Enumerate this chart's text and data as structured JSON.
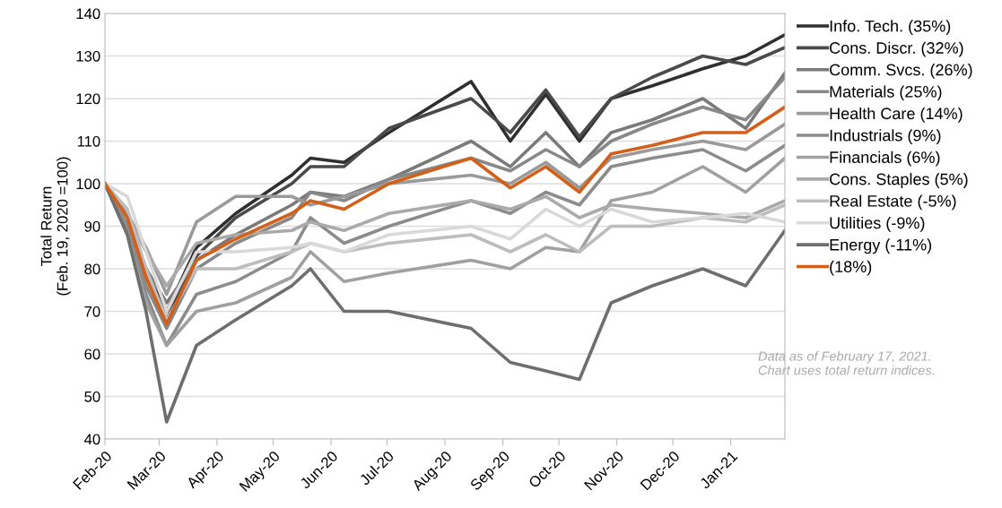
{
  "chart_data": {
    "type": "line",
    "ylabel": "Total Return\n(Feb. 19, 2020 =100)",
    "x": [
      "2020-02-19",
      "2020-03-02",
      "2020-03-12",
      "2020-03-23",
      "2020-04-08",
      "2020-04-29",
      "2020-05-29",
      "2020-06-08",
      "2020-06-26",
      "2020-07-20",
      "2020-09-02",
      "2020-09-23",
      "2020-10-12",
      "2020-10-30",
      "2020-11-16",
      "2020-12-08",
      "2021-01-04",
      "2021-01-27",
      "2021-02-17"
    ],
    "series": [
      {
        "name": "Info. Tech. (35%)",
        "color": "#2f2f2f",
        "values": [
          100,
          90,
          80,
          70,
          85,
          93,
          102,
          106,
          105,
          112,
          124,
          110,
          121,
          110,
          120,
          123,
          127,
          130,
          135
        ]
      },
      {
        "name": "Cons. Discr. (32%)",
        "color": "#4a4a4a",
        "values": [
          100,
          90,
          78,
          68,
          83,
          92,
          100,
          104,
          104,
          113,
          120,
          112,
          122,
          111,
          120,
          125,
          130,
          128,
          132
        ]
      },
      {
        "name": "Comm. Svcs. (26%)",
        "color": "#7a7a7a",
        "values": [
          100,
          92,
          80,
          72,
          82,
          88,
          95,
          98,
          97,
          101,
          110,
          104,
          112,
          104,
          112,
          115,
          120,
          113,
          126
        ]
      },
      {
        "name": "Materials (25%)",
        "color": "#888888",
        "values": [
          100,
          90,
          76,
          66,
          80,
          86,
          92,
          98,
          96,
          101,
          106,
          103,
          108,
          104,
          110,
          114,
          118,
          115,
          125
        ]
      },
      {
        "name": "Health Care (14%)",
        "color": "#9a9a9a",
        "values": [
          100,
          93,
          85,
          74,
          91,
          97,
          97,
          95,
          97,
          100,
          102,
          100,
          105,
          99,
          106,
          108,
          110,
          108,
          114
        ]
      },
      {
        "name": "Industrials (9%)",
        "color": "#8c8c8c",
        "values": [
          100,
          90,
          74,
          62,
          74,
          77,
          84,
          92,
          86,
          90,
          96,
          93,
          98,
          95,
          104,
          106,
          108,
          103,
          109
        ]
      },
      {
        "name": "Financials (6%)",
        "color": "#a0a0a0",
        "values": [
          100,
          88,
          72,
          62,
          70,
          72,
          78,
          84,
          77,
          79,
          82,
          80,
          85,
          84,
          96,
          98,
          104,
          98,
          106
        ]
      },
      {
        "name": "Cons. Staples (5%)",
        "color": "#aaaaaa",
        "values": [
          100,
          92,
          84,
          76,
          86,
          88,
          89,
          91,
          89,
          93,
          96,
          94,
          97,
          92,
          95,
          94,
          93,
          92,
          96
        ]
      },
      {
        "name": "Real Estate (-5%)",
        "color": "#bdbdbd",
        "values": [
          100,
          94,
          80,
          68,
          80,
          80,
          84,
          86,
          84,
          86,
          88,
          84,
          88,
          84,
          90,
          90,
          92,
          91,
          95
        ]
      },
      {
        "name": "Utilities (-9%)",
        "color": "#d9d9d9",
        "values": [
          100,
          97,
          84,
          70,
          84,
          84,
          85,
          86,
          84,
          88,
          90,
          87,
          94,
          90,
          94,
          91,
          92,
          93,
          91
        ]
      },
      {
        "name": "Energy (-11%)",
        "color": "#6e6e6e",
        "values": [
          100,
          88,
          70,
          44,
          62,
          68,
          76,
          80,
          70,
          70,
          66,
          58,
          56,
          54,
          72,
          76,
          80,
          76,
          89
        ]
      },
      {
        "name": "(18%)",
        "color": "#d2601a",
        "values": [
          100,
          92,
          78,
          67,
          82,
          87,
          93,
          96,
          94,
          100,
          106,
          99,
          104,
          98,
          107,
          109,
          112,
          112,
          118
        ]
      }
    ],
    "xlim": [
      "2020-02-19",
      "2021-02-17"
    ],
    "xticks": [
      {
        "value": "2020-02-19",
        "label": "Feb-20"
      },
      {
        "value": "2020-03-19",
        "label": "Mar-20"
      },
      {
        "value": "2020-04-19",
        "label": "Apr-20"
      },
      {
        "value": "2020-05-19",
        "label": "May-20"
      },
      {
        "value": "2020-06-19",
        "label": "Jun-20"
      },
      {
        "value": "2020-07-19",
        "label": "Jul-20"
      },
      {
        "value": "2020-08-19",
        "label": "Aug-20"
      },
      {
        "value": "2020-09-19",
        "label": "Sep-20"
      },
      {
        "value": "2020-10-19",
        "label": "Oct-20"
      },
      {
        "value": "2020-11-19",
        "label": "Nov-20"
      },
      {
        "value": "2020-12-19",
        "label": "Dec-20"
      },
      {
        "value": "2021-01-19",
        "label": "Jan-21"
      }
    ],
    "ylim": [
      40,
      140
    ],
    "yticks": [
      40,
      50,
      60,
      70,
      80,
      90,
      100,
      110,
      120,
      130,
      140
    ],
    "grid": "y",
    "legend": "right",
    "line_style": "solid",
    "marker": "none",
    "annotations": [
      "Data as of February 17, 2021.\nChart uses total return indices."
    ]
  }
}
